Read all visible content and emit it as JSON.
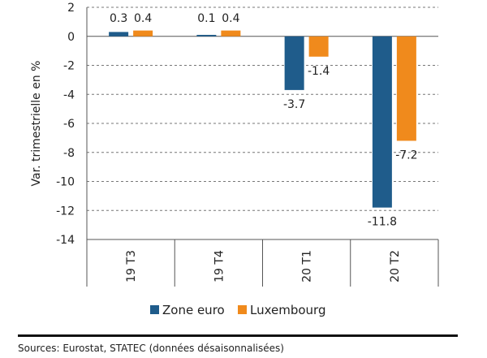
{
  "chart_data": {
    "type": "bar",
    "categories": [
      "19 T3",
      "19 T4",
      "20 T1",
      "20 T2"
    ],
    "series": [
      {
        "name": "Zone euro",
        "values": [
          0.3,
          0.1,
          -3.7,
          -11.8
        ],
        "labels": [
          "0.3",
          "0.1",
          "-3.7",
          "-11.8"
        ],
        "color": "#1f5c8b"
      },
      {
        "name": "Luxembourg",
        "values": [
          0.4,
          0.4,
          -1.4,
          -7.2
        ],
        "labels": [
          "0.4",
          "0.4",
          "-1.4",
          "-7.2"
        ],
        "color": "#f08a1c"
      }
    ],
    "ylabel": "Var. trimestrielle en %",
    "ylim": [
      -14,
      2
    ],
    "yticks": [
      2,
      0,
      -2,
      -4,
      -6,
      -8,
      -10,
      -12,
      -14
    ],
    "ytick_labels": [
      "2",
      "0",
      "-2",
      "-4",
      "-6",
      "-8",
      "-10",
      "-12",
      "-14"
    ],
    "grid": true,
    "legend_position": "bottom"
  },
  "source_note": "Sources: Eurostat, STATEC (données désaisonnalisées)"
}
